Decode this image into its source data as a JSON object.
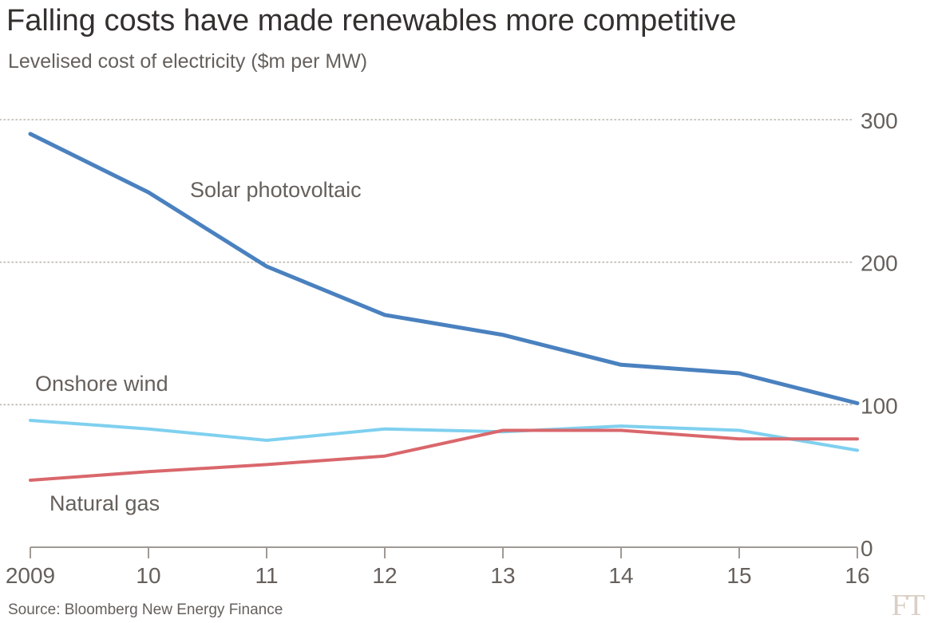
{
  "title": "Falling costs have made renewables more competitive",
  "subtitle": "Levelised cost of electricity ($m per MW)",
  "source": "Source: Bloomberg New Energy Finance",
  "brand": "FT",
  "colors": {
    "solar": "#4a81bf",
    "wind": "#7fd0ef",
    "gas": "#d9676c",
    "grid": "#bdb6ae",
    "axis": "#a09a94",
    "text": "#66605c"
  },
  "chart_data": {
    "type": "line",
    "title": "Falling costs have made renewables more competitive",
    "subtitle": "Levelised cost of electricity ($m per MW)",
    "x": [
      2009,
      2010,
      2011,
      2012,
      2013,
      2014,
      2015,
      2016
    ],
    "x_tick_labels": [
      "2009",
      "10",
      "11",
      "12",
      "13",
      "14",
      "15",
      "16"
    ],
    "ylim": [
      0,
      300
    ],
    "y_ticks": [
      0,
      100,
      200,
      300
    ],
    "y_tick_labels": [
      "0",
      "100",
      "200",
      "300"
    ],
    "y_axis_side": "right",
    "grid": "horizontal dotted",
    "series": [
      {
        "name": "Solar photovoltaic",
        "color": "#4a81bf",
        "values": [
          290,
          249,
          197,
          163,
          149,
          128,
          122,
          101
        ]
      },
      {
        "name": "Onshore wind",
        "color": "#7fd0ef",
        "values": [
          89,
          83,
          75,
          83,
          81,
          85,
          82,
          68
        ]
      },
      {
        "name": "Natural gas",
        "color": "#d9676c",
        "values": [
          47,
          53,
          58,
          64,
          82,
          82,
          76,
          76
        ]
      }
    ]
  }
}
